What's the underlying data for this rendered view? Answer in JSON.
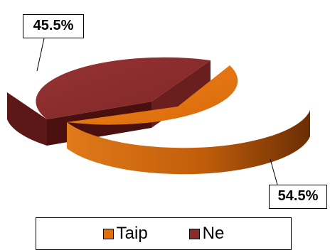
{
  "chart_data": {
    "type": "pie",
    "three_d": true,
    "categories": [
      "Taip",
      "Ne"
    ],
    "values": [
      54.5,
      45.5
    ],
    "data_labels": [
      "54.5%",
      "45.5%"
    ],
    "colors": [
      "#e0700c",
      "#8b2a2a"
    ],
    "title": "",
    "legend_position": "bottom"
  }
}
